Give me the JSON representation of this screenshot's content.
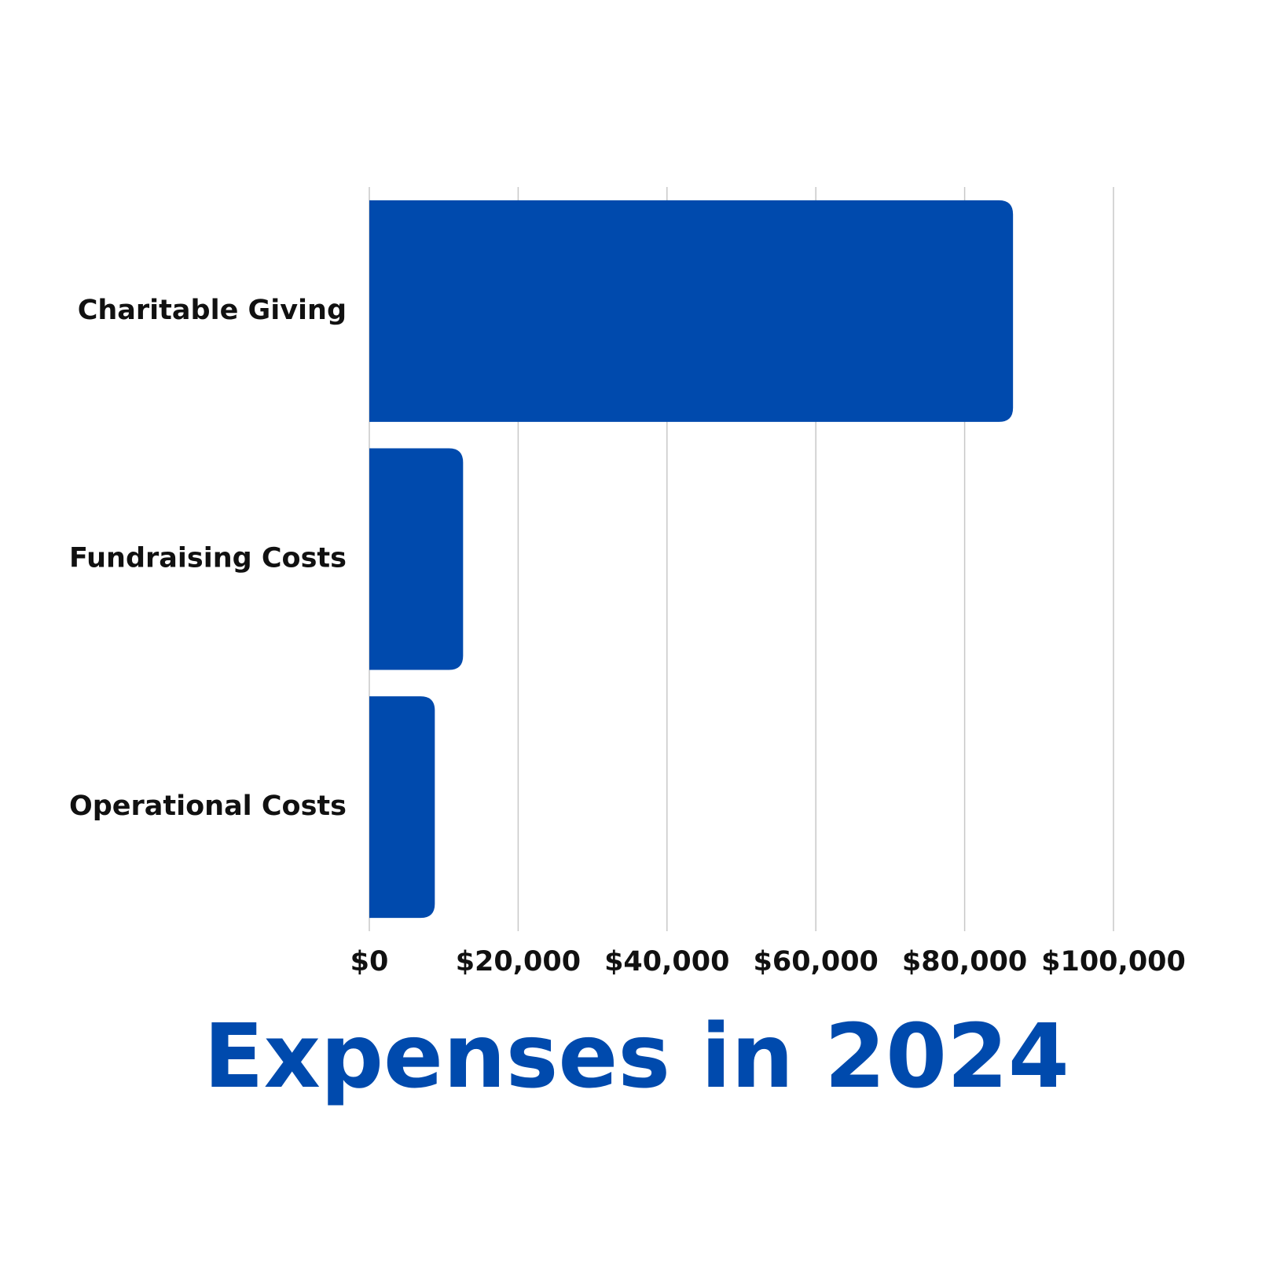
{
  "chart_data": {
    "type": "bar",
    "orientation": "horizontal",
    "title": "Expenses in 2024",
    "categories": [
      "Charitable Giving",
      "Fundraising Costs",
      "Operational Costs"
    ],
    "values": [
      86500,
      12600,
      8800
    ],
    "color": "#004aad",
    "xlim": [
      0,
      100000
    ],
    "xticks": [
      {
        "value": 0,
        "label": "$0"
      },
      {
        "value": 20000,
        "label": "$20,000"
      },
      {
        "value": 40000,
        "label": "$40,000"
      },
      {
        "value": 60000,
        "label": "$60,000"
      },
      {
        "value": 80000,
        "label": "$80,000"
      },
      {
        "value": 100000,
        "label": "$100,000"
      }
    ],
    "grid": true
  }
}
